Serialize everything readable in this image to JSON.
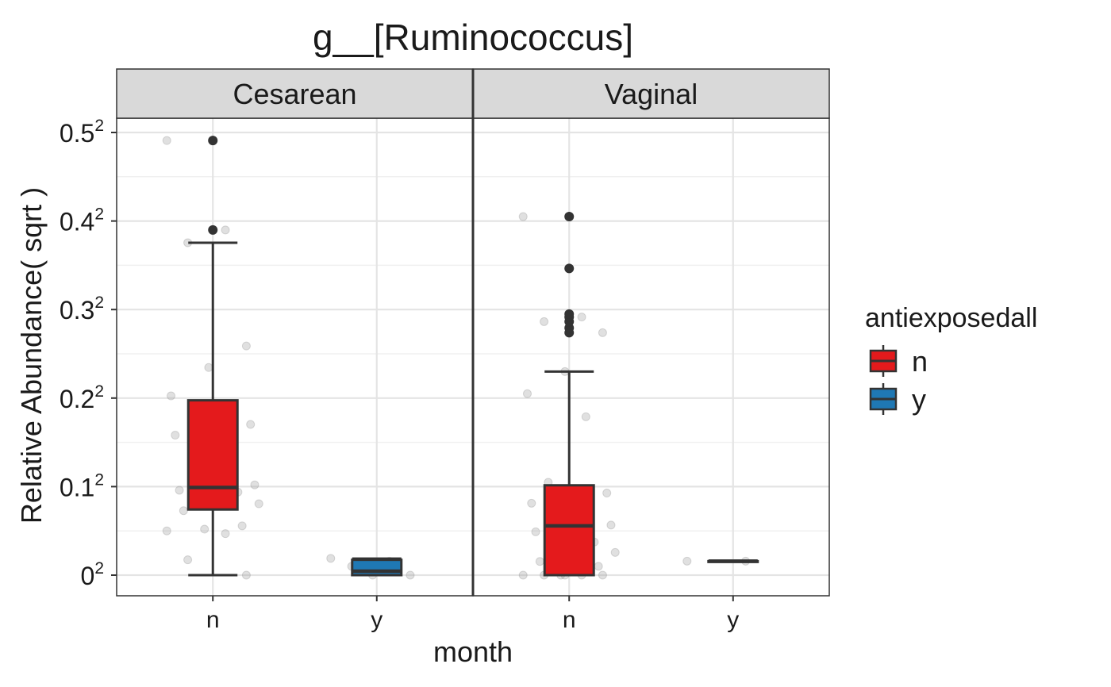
{
  "chart_data": {
    "type": "box",
    "title": "g__[Ruminococcus]",
    "xlabel": "month",
    "ylabel": "Relative Abundance( sqrt )",
    "y_scale": "sqrt",
    "y_tick_bases": [
      "0",
      "0.1",
      "0.2",
      "0.3",
      "0.4",
      "0.5"
    ],
    "y_tick_exponent": "2",
    "y_tick_values": [
      0,
      0.01,
      0.04,
      0.09,
      0.16,
      0.25
    ],
    "facets": [
      "Cesarean",
      "Vaginal"
    ],
    "categories": [
      "n",
      "y"
    ],
    "legend": {
      "title": "antiexposedall",
      "placement": "right",
      "entries": [
        {
          "label": "n",
          "color": "#E41A1C"
        },
        {
          "label": "y",
          "color": "#1F78B4"
        }
      ]
    },
    "grid": true,
    "boxes": [
      {
        "facet": "Cesarean",
        "category": "n",
        "group": "n",
        "color": "#E41A1C",
        "min": 0,
        "q1": 0.0055,
        "median": 0.0098,
        "q3": 0.039,
        "max": 0.141,
        "outliers": [
          0.152,
          0.241
        ],
        "jitter": [
          0.241,
          0.152,
          0.141,
          0.067,
          0.055,
          0.041,
          0.034,
          0.032,
          0.029,
          0.028,
          0.025,
          0.011,
          0.0105,
          0.0104,
          0.0098,
          0.0092,
          0.0088,
          0.0076,
          0.0065,
          0.0063,
          0.0053,
          0.0031,
          0.0027,
          0.0025,
          0.0022,
          0.0003,
          0
        ]
      },
      {
        "facet": "Cesarean",
        "category": "y",
        "group": "y",
        "color": "#1F78B4",
        "min": 0,
        "q1": 0,
        "median": 2e-05,
        "q3": 0.0003,
        "max": 0.00035,
        "outliers": [],
        "jitter": [
          0.00036,
          0.00025,
          0.0001,
          0,
          0
        ]
      },
      {
        "facet": "Vaginal",
        "category": "n",
        "group": "n",
        "color": "#E41A1C",
        "min": 0,
        "q1": 0,
        "median": 0.0031,
        "q3": 0.0103,
        "max": 0.0529,
        "outliers": [
          0.075,
          0.078,
          0.082,
          0.085,
          0.087,
          0.12,
          0.164
        ],
        "jitter": [
          0.164,
          0.085,
          0.082,
          0.075,
          0.0529,
          0.042,
          0.032,
          0.011,
          0.0086,
          0.0073,
          0.0066,
          0.0055,
          0.0043,
          0.0032,
          0.003,
          0.0024,
          0.0014,
          0.00088,
          0.00066,
          0.00037,
          0.00024,
          0.0001,
          0,
          0,
          0,
          0,
          0,
          0
        ]
      },
      {
        "facet": "Vaginal",
        "category": "y",
        "group": "y",
        "color": "#1F78B4",
        "min": 0.00025,
        "q1": 0.00025,
        "median": 0.00025,
        "q3": 0.00025,
        "max": 0.00025,
        "outliers": [],
        "jitter": [
          0.00025,
          0.00025
        ]
      }
    ]
  }
}
